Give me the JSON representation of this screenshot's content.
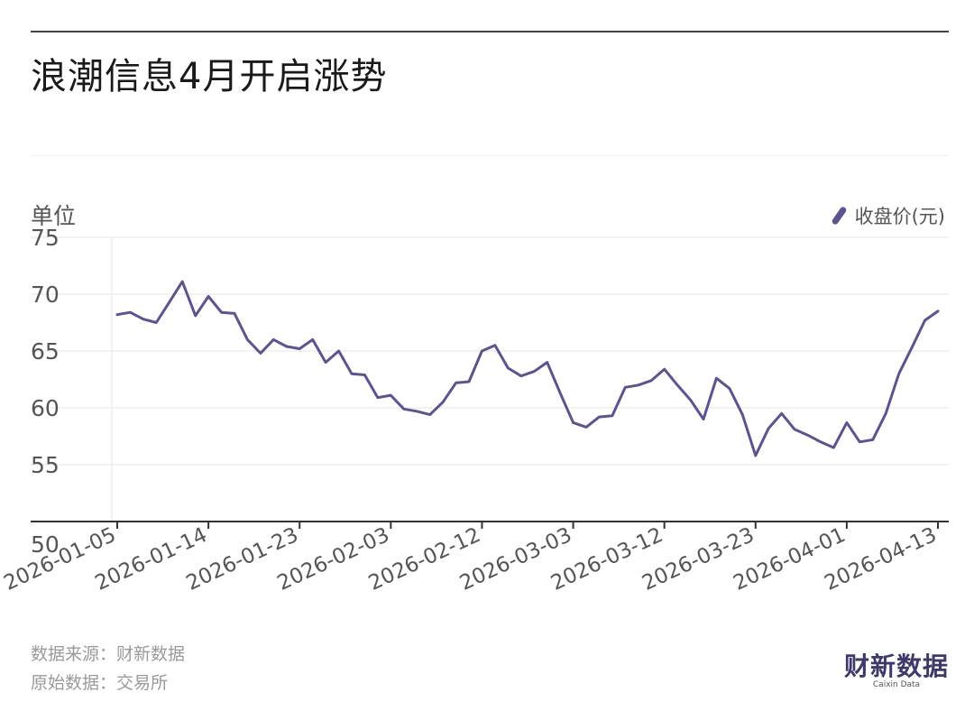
{
  "title": "浪潮信息4月开启涨势",
  "unit_label": "单位",
  "legend_label": "收盘价(元)",
  "source_line": "数据来源：财新数据",
  "raw_data_line": "原始数据：交易所",
  "logo_cn": "财新数据",
  "logo_en": "Caixin Data",
  "colors": {
    "line": "#5a5490",
    "grid": "#e6e6e6",
    "axis": "#333333"
  },
  "chart_data": {
    "type": "line",
    "title": "浪潮信息4月开启涨势",
    "ylabel": "单位",
    "ylim": [
      50,
      75
    ],
    "yticks": [
      50,
      55,
      60,
      65,
      70,
      75
    ],
    "xticks": [
      "2026-01-05",
      "2026-01-14",
      "2026-01-23",
      "2026-02-03",
      "2026-02-12",
      "2026-03-03",
      "2026-03-12",
      "2026-03-23",
      "2026-04-01",
      "2026-04-13"
    ],
    "grid": true,
    "legend_position": "top-right",
    "series": [
      {
        "name": "收盘价(元)",
        "x": [
          "2026-01-05",
          "2026-01-06",
          "2026-01-07",
          "2026-01-08",
          "2026-01-09",
          "2026-01-12",
          "2026-01-13",
          "2026-01-14",
          "2026-01-15",
          "2026-01-16",
          "2026-01-19",
          "2026-01-20",
          "2026-01-21",
          "2026-01-22",
          "2026-01-23",
          "2026-01-26",
          "2026-01-27",
          "2026-01-28",
          "2026-01-29",
          "2026-01-30",
          "2026-02-02",
          "2026-02-03",
          "2026-02-04",
          "2026-02-05",
          "2026-02-06",
          "2026-02-09",
          "2026-02-10",
          "2026-02-11",
          "2026-02-12",
          "2026-02-13",
          "2026-02-24",
          "2026-02-25",
          "2026-02-26",
          "2026-02-27",
          "2026-03-02",
          "2026-03-03",
          "2026-03-04",
          "2026-03-05",
          "2026-03-06",
          "2026-03-09",
          "2026-03-10",
          "2026-03-11",
          "2026-03-12",
          "2026-03-13",
          "2026-03-16",
          "2026-03-17",
          "2026-03-18",
          "2026-03-19",
          "2026-03-20",
          "2026-03-23",
          "2026-03-24",
          "2026-03-25",
          "2026-03-26",
          "2026-03-27",
          "2026-03-30",
          "2026-03-31",
          "2026-04-01",
          "2026-04-02",
          "2026-04-03",
          "2026-04-07",
          "2026-04-08",
          "2026-04-09",
          "2026-04-10",
          "2026-04-13"
        ],
        "values": [
          68.2,
          68.4,
          67.8,
          67.5,
          69.3,
          71.1,
          68.1,
          69.8,
          68.4,
          68.3,
          66.0,
          64.8,
          66.0,
          65.4,
          65.2,
          66.0,
          64.0,
          65.0,
          63.0,
          62.9,
          60.9,
          61.1,
          59.9,
          59.7,
          59.4,
          60.5,
          62.2,
          62.3,
          65.0,
          65.5,
          63.5,
          62.8,
          63.2,
          64.0,
          61.3,
          58.7,
          58.3,
          59.2,
          59.3,
          61.8,
          62.0,
          62.4,
          63.4,
          62.0,
          60.7,
          59.0,
          62.6,
          61.7,
          59.4,
          55.8,
          58.2,
          59.5,
          58.1,
          57.6,
          57.0,
          56.5,
          58.7,
          57.0,
          57.2,
          59.5,
          63.0,
          65.3,
          67.7,
          68.5
        ]
      }
    ]
  }
}
